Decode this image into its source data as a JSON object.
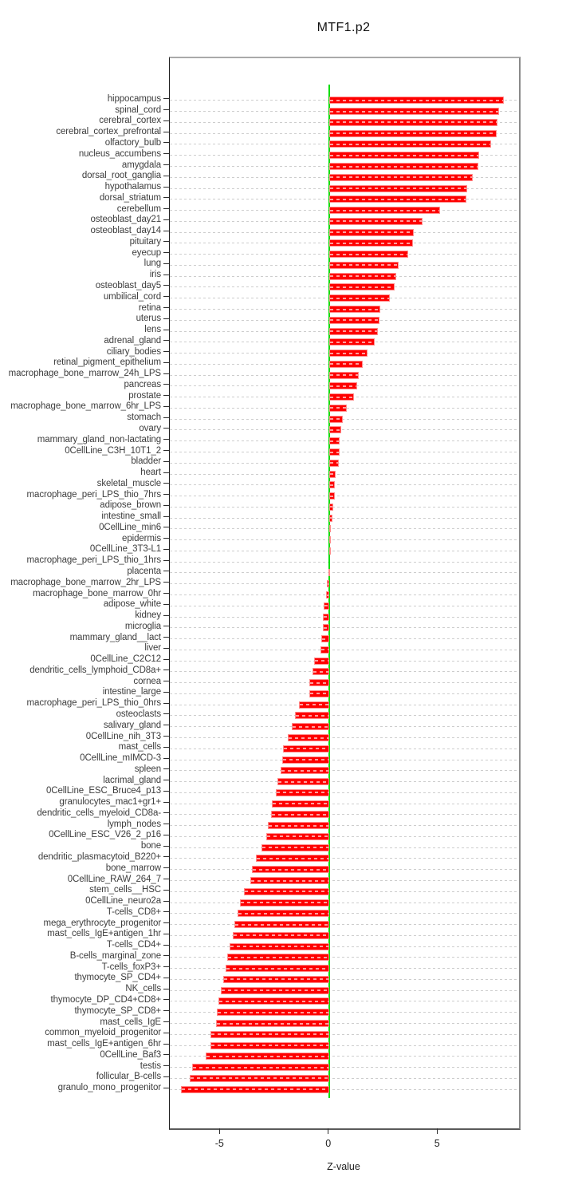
{
  "title": "MTF1.p2",
  "chart_data": {
    "type": "bar",
    "orientation": "horizontal",
    "title": "MTF1.p2",
    "xlabel": "Z-value",
    "xticks": [
      -5,
      0,
      5
    ],
    "xlim": [
      -7.32,
      8.73
    ],
    "grid": "dashed-horizontal-per-category",
    "zero_line": true,
    "legend": "none",
    "colors": {
      "bar_fill": "#fe0000",
      "bar_border": "#ff8d8d",
      "zero_line": "#00dd00",
      "gridline": "#cdcdcd",
      "label_text": "#3d3d3d"
    },
    "categories": [
      "hippocampus",
      "spinal_cord",
      "cerebral_cortex",
      "cerebral_cortex_prefrontal",
      "olfactory_bulb",
      "nucleus_accumbens",
      "amygdala",
      "dorsal_root_ganglia",
      "hypothalamus",
      "dorsal_striatum",
      "cerebellum",
      "osteoblast_day21",
      "osteoblast_day14",
      "pituitary",
      "eyecup",
      "lung",
      "iris",
      "osteoblast_day5",
      "umbilical_cord",
      "retina",
      "uterus",
      "lens",
      "adrenal_gland",
      "ciliary_bodies",
      "retinal_pigment_epithelium",
      "macrophage_bone_marrow_24h_LPS",
      "pancreas",
      "prostate",
      "macrophage_bone_marrow_6hr_LPS",
      "stomach",
      "ovary",
      "mammary_gland_non-lactating",
      "0CellLine_C3H_10T1_2",
      "bladder",
      "heart",
      "skeletal_muscle",
      "macrophage_peri_LPS_thio_7hrs",
      "adipose_brown",
      "intestine_small",
      "0CellLine_min6",
      "epidermis",
      "0CellLine_3T3-L1",
      "macrophage_peri_LPS_thio_1hrs",
      "placenta",
      "macrophage_bone_marrow_2hr_LPS",
      "macrophage_bone_marrow_0hr",
      "adipose_white",
      "kidney",
      "microglia",
      "mammary_gland__lact",
      "liver",
      "0CellLine_C2C12",
      "dendritic_cells_lymphoid_CD8a+",
      "cornea",
      "intestine_large",
      "macrophage_peri_LPS_thio_0hrs",
      "osteoclasts",
      "salivary_gland",
      "0CellLine_nih_3T3",
      "mast_cells",
      "0CellLine_mIMCD-3",
      "spleen",
      "lacrimal_gland",
      "0CellLine_ESC_Bruce4_p13",
      "granulocytes_mac1+gr1+",
      "dendritic_cells_myeloid_CD8a-",
      "lymph_nodes",
      "0CellLine_ESC_V26_2_p16",
      "bone",
      "dendritic_plasmacytoid_B220+",
      "bone_marrow",
      "0CellLine_RAW_264_7",
      "stem_cells__HSC",
      "0CellLine_neuro2a",
      "T-cells_CD8+",
      "mega_erythrocyte_progenitor",
      "mast_cells_IgE+antigen_1hr",
      "T-cells_CD4+",
      "B-cells_marginal_zone",
      "T-cells_foxP3+",
      "thymocyte_SP_CD4+",
      "NK_cells",
      "thymocyte_DP_CD4+CD8+",
      "thymocyte_SP_CD8+",
      "mast_cells_IgE",
      "common_myeloid_progenitor",
      "mast_cells_IgE+antigen_6hr",
      "0CellLine_Baf3",
      "testis",
      "follicular_B-cells",
      "granulo_mono_progenitor"
    ],
    "values": [
      8.05,
      7.8,
      7.75,
      7.7,
      7.45,
      6.9,
      6.85,
      6.6,
      6.35,
      6.3,
      5.1,
      4.3,
      3.9,
      3.85,
      3.65,
      3.2,
      3.1,
      3.0,
      2.8,
      2.35,
      2.3,
      2.25,
      2.1,
      1.75,
      1.55,
      1.35,
      1.3,
      1.15,
      0.8,
      0.65,
      0.55,
      0.5,
      0.48,
      0.45,
      0.3,
      0.28,
      0.25,
      0.18,
      0.14,
      0.1,
      0.08,
      0.02,
      0.0,
      -0.03,
      -0.1,
      -0.13,
      -0.26,
      -0.28,
      -0.3,
      -0.36,
      -0.38,
      -0.7,
      -0.75,
      -0.9,
      -0.92,
      -1.38,
      -1.57,
      -1.7,
      -1.9,
      -2.12,
      -2.15,
      -2.22,
      -2.36,
      -2.45,
      -2.63,
      -2.66,
      -2.8,
      -2.9,
      -3.1,
      -3.38,
      -3.55,
      -3.62,
      -3.93,
      -4.08,
      -4.2,
      -4.35,
      -4.42,
      -4.58,
      -4.67,
      -4.76,
      -4.85,
      -4.98,
      -5.07,
      -5.15,
      -5.2,
      -5.44,
      -5.46,
      -5.66,
      -6.28,
      -6.42,
      -6.8
    ]
  }
}
